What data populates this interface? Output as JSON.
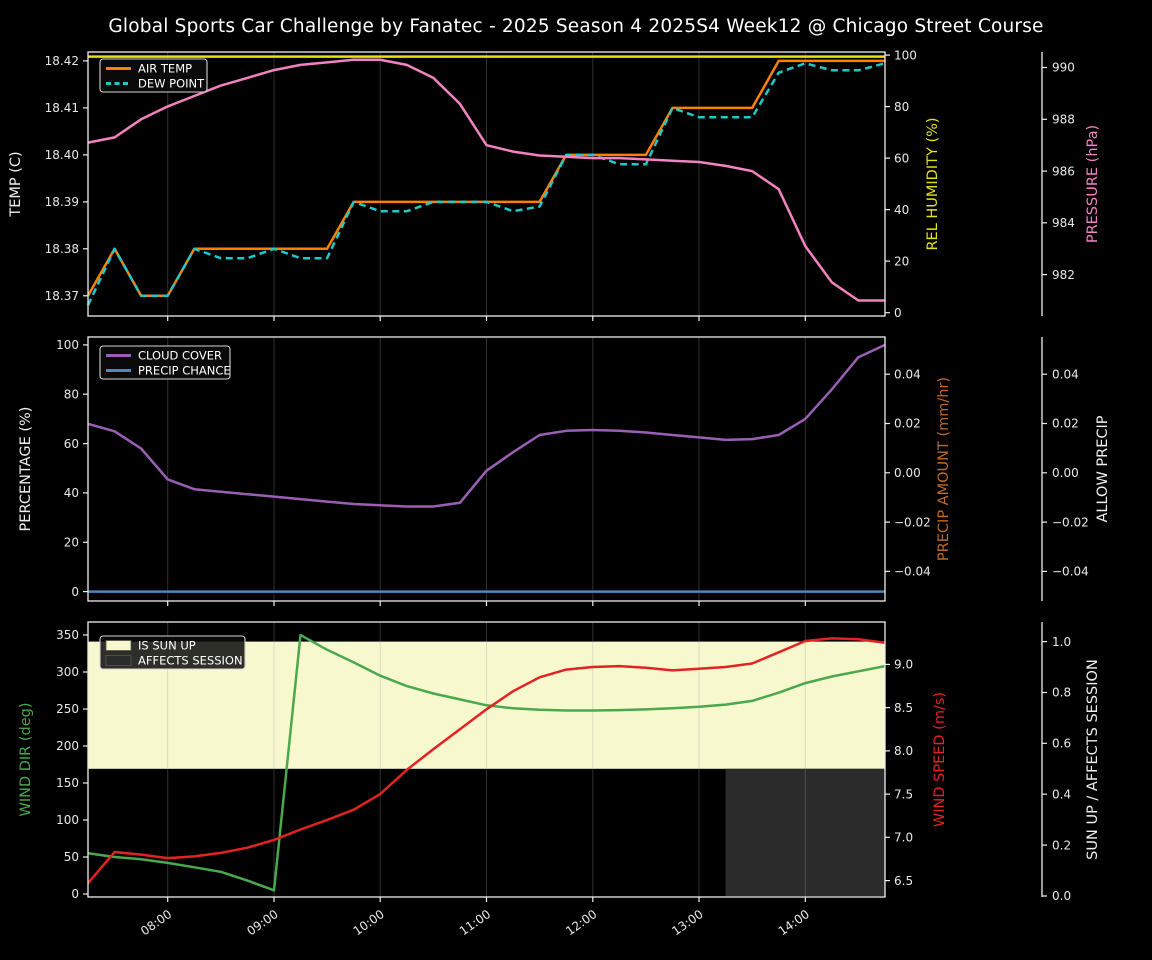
{
  "title": "Global Sports Car Challenge by Fanatec - 2025 Season 4 2025S4 Week12 @ Chicago Street Course",
  "colors": {
    "background": "#000000",
    "foreground": "#efefef",
    "tick_text": "#e8e8e8",
    "grid": "#9e9e9e",
    "air_temp": "#ff8000",
    "dew_point": "#1fc9c9",
    "humidity": "#e3e312",
    "pressure": "#f282c0",
    "cloud_cover": "#9a5fb5",
    "precip_chance": "#4d87bb",
    "precip_amount": "#c06a28",
    "wind_dir": "#4aa84e",
    "wind_speed": "#e32222",
    "sun_up_fill": "#f8f8ce",
    "affects_fill": "#2b2b2b",
    "legend_bg": "rgba(12,12,12,0.85)",
    "legend_border": "#d4d4d4"
  },
  "x_axis": {
    "start": "07:15",
    "end": "14:45",
    "step_minutes": 15,
    "tick_labels": [
      "08:00",
      "09:00",
      "10:00",
      "11:00",
      "12:00",
      "13:00",
      "14:00"
    ],
    "times": [
      "07:15",
      "07:30",
      "07:45",
      "08:00",
      "08:15",
      "08:30",
      "08:45",
      "09:00",
      "09:15",
      "09:30",
      "09:45",
      "10:00",
      "10:15",
      "10:30",
      "10:45",
      "11:00",
      "11:15",
      "11:30",
      "11:45",
      "12:00",
      "12:15",
      "12:30",
      "12:45",
      "13:00",
      "13:15",
      "13:30",
      "13:45",
      "14:00",
      "14:15",
      "14:30",
      "14:45"
    ]
  },
  "chart_data": [
    {
      "name": "temperature-humidity-pressure",
      "type": "line",
      "legend": [
        {
          "label": "AIR TEMP",
          "swatch": "line",
          "color_key": "air_temp",
          "dash": false
        },
        {
          "label": "DEW POINT",
          "swatch": "line",
          "color_key": "dew_point",
          "dash": true
        }
      ],
      "axes": {
        "left": {
          "label": "TEMP (C)",
          "color_key": "foreground",
          "tick_values": [
            18.37,
            18.38,
            18.39,
            18.4,
            18.41,
            18.42
          ],
          "tick_labels": [
            "18.37",
            "18.38",
            "18.39",
            "18.40",
            "18.41",
            "18.42"
          ],
          "range": [
            18.3657,
            18.4219
          ]
        },
        "right_inner": {
          "label": "REL HUMIDITY (%)",
          "color_key": "humidity",
          "tick_values": [
            0,
            20,
            40,
            60,
            80,
            100
          ],
          "tick_labels": [
            "0",
            "20",
            "40",
            "60",
            "80",
            "100"
          ],
          "range": [
            -1.3,
            101.2
          ]
        },
        "right_outer": {
          "label": "PRESSURE (hPa)",
          "color_key": "pressure",
          "tick_values": [
            982,
            984,
            986,
            988,
            990
          ],
          "tick_labels": [
            "982",
            "984",
            "986",
            "988",
            "990"
          ],
          "range": [
            980.4,
            990.6
          ]
        }
      },
      "series": [
        {
          "name": "AIR TEMP",
          "axis": "left",
          "color_key": "air_temp",
          "dash": false,
          "values": [
            18.37,
            18.38,
            18.37,
            18.37,
            18.38,
            18.38,
            18.38,
            18.38,
            18.38,
            18.38,
            18.39,
            18.39,
            18.39,
            18.39,
            18.39,
            18.39,
            18.39,
            18.39,
            18.4,
            18.4,
            18.4,
            18.4,
            18.41,
            18.41,
            18.41,
            18.41,
            18.42,
            18.42,
            18.42,
            18.42,
            18.42
          ]
        },
        {
          "name": "DEW POINT",
          "axis": "left",
          "color_key": "dew_point",
          "dash": true,
          "values": [
            18.368,
            18.38,
            18.37,
            18.37,
            18.38,
            18.378,
            18.378,
            18.38,
            18.378,
            18.378,
            18.39,
            18.388,
            18.388,
            18.39,
            18.39,
            18.39,
            18.388,
            18.389,
            18.4,
            18.4,
            18.398,
            18.398,
            18.41,
            18.408,
            18.408,
            18.408,
            18.4175,
            18.4195,
            18.418,
            18.418,
            18.4195
          ]
        },
        {
          "name": "REL HUMIDITY",
          "axis": "right_inner",
          "color_key": "humidity",
          "dash": false,
          "values": [
            99.4,
            99.4,
            99.4,
            99.4,
            99.4,
            99.4,
            99.4,
            99.4,
            99.4,
            99.4,
            99.4,
            99.4,
            99.4,
            99.4,
            99.4,
            99.4,
            99.4,
            99.4,
            99.4,
            99.4,
            99.4,
            99.4,
            99.4,
            99.4,
            99.4,
            99.4,
            99.4,
            99.4,
            99.4,
            99.4,
            99.4
          ]
        },
        {
          "name": "PRESSURE",
          "axis": "right_outer",
          "color_key": "pressure",
          "dash": false,
          "values": [
            987.1,
            987.3,
            988.0,
            988.5,
            988.9,
            989.3,
            989.6,
            989.9,
            990.1,
            990.2,
            990.3,
            990.3,
            990.1,
            989.6,
            988.6,
            987.0,
            986.75,
            986.6,
            986.55,
            986.5,
            986.5,
            986.45,
            986.4,
            986.35,
            986.2,
            986.0,
            985.3,
            983.1,
            981.7,
            981.0,
            981.0
          ]
        }
      ]
    },
    {
      "name": "cloud-precip",
      "type": "line",
      "legend": [
        {
          "label": "CLOUD COVER",
          "swatch": "line",
          "color_key": "cloud_cover",
          "dash": false
        },
        {
          "label": "PRECIP CHANCE",
          "swatch": "line",
          "color_key": "precip_chance",
          "dash": false
        }
      ],
      "axes": {
        "left": {
          "label": "PERCENTAGE (%)",
          "color_key": "foreground",
          "tick_values": [
            0,
            20,
            40,
            60,
            80,
            100
          ],
          "tick_labels": [
            "0",
            "20",
            "40",
            "60",
            "80",
            "100"
          ],
          "range": [
            -3.8,
            103.2
          ]
        },
        "right_inner": {
          "label": "PRECIP AMOUNT (mm/hr)",
          "color_key": "precip_amount",
          "tick_values": [
            0.04,
            0.02,
            0,
            -0.02,
            -0.04
          ],
          "tick_labels": [
            "0.04",
            "0.02",
            "0.00",
            "−0.02",
            "−0.04"
          ],
          "range": [
            -0.052,
            0.0551
          ]
        },
        "right_outer": {
          "label": "ALLOW PRECIP",
          "color_key": "foreground",
          "tick_values": [
            0.04,
            0.02,
            0,
            -0.02,
            -0.04
          ],
          "tick_labels": [
            "0.04",
            "0.02",
            "0.00",
            "−0.02",
            "−0.04"
          ],
          "range": [
            -0.052,
            0.0551
          ]
        }
      },
      "series": [
        {
          "name": "CLOUD COVER",
          "axis": "left",
          "color_key": "cloud_cover",
          "dash": false,
          "values": [
            68,
            65,
            58,
            45.5,
            41.5,
            40.5,
            39.5,
            38.5,
            37.5,
            36.5,
            35.5,
            35,
            34.5,
            34.5,
            36,
            49,
            56.5,
            63.5,
            65.2,
            65.5,
            65.2,
            64.5,
            63.5,
            62.5,
            61.5,
            61.8,
            63.5,
            70,
            82,
            95,
            100
          ]
        },
        {
          "name": "PRECIP CHANCE",
          "axis": "left",
          "color_key": "precip_chance",
          "dash": false,
          "values": [
            0,
            0,
            0,
            0,
            0,
            0,
            0,
            0,
            0,
            0,
            0,
            0,
            0,
            0,
            0,
            0,
            0,
            0,
            0,
            0,
            0,
            0,
            0,
            0,
            0,
            0,
            0,
            0,
            0,
            0,
            0
          ]
        }
      ]
    },
    {
      "name": "wind-sun",
      "type": "line",
      "legend": [
        {
          "label": "IS SUN UP",
          "swatch": "patch",
          "color_key": "sun_up_fill",
          "dash": false
        },
        {
          "label": "AFFECTS SESSION",
          "swatch": "patch",
          "color_key": "affects_fill",
          "dash": false
        }
      ],
      "axes": {
        "left": {
          "label": "WIND DIR (deg)",
          "color_key": "wind_dir",
          "tick_values": [
            0,
            50,
            100,
            150,
            200,
            250,
            300,
            350
          ],
          "tick_labels": [
            "0",
            "50",
            "100",
            "150",
            "200",
            "250",
            "300",
            "350"
          ],
          "range": [
            -4.1,
            367.6
          ]
        },
        "right_inner": {
          "label": "WIND SPEED (m/s)",
          "color_key": "wind_speed",
          "tick_values": [
            6.5,
            7.0,
            7.5,
            8.0,
            8.5,
            9.0
          ],
          "tick_labels": [
            "6.5",
            "7.0",
            "7.5",
            "8.0",
            "8.5",
            "9.0"
          ],
          "range": [
            6.31,
            9.49
          ]
        },
        "right_outer": {
          "label": "SUN UP / AFFECTS SESSION",
          "color_key": "foreground",
          "tick_values": [
            0,
            0.2,
            0.4,
            0.6,
            0.8,
            1.0
          ],
          "tick_labels": [
            "0.0",
            "0.2",
            "0.4",
            "0.6",
            "0.8",
            "1.0"
          ],
          "range": [
            -0.004,
            1.077
          ]
        }
      },
      "bands": [
        {
          "name": "IS SUN UP",
          "axis": "right_outer",
          "x_from": "07:15",
          "x_to": "14:45",
          "y_from": 0.5,
          "y_to": 1.0,
          "color_key": "sun_up_fill"
        },
        {
          "name": "AFFECTS SESSION",
          "axis": "right_outer",
          "x_from": "13:15",
          "x_to": "14:45",
          "y_from": 0.0,
          "y_to": 0.5,
          "color_key": "affects_fill"
        }
      ],
      "series": [
        {
          "name": "WIND DIR",
          "axis": "left",
          "color_key": "wind_dir",
          "dash": false,
          "values": [
            55,
            50,
            47,
            42,
            36,
            30,
            18,
            5,
            350,
            330,
            313,
            295,
            281,
            271,
            263,
            255,
            251,
            249,
            248,
            248,
            248.5,
            249.5,
            251,
            253,
            256,
            261,
            272,
            285,
            294,
            301,
            308
          ]
        },
        {
          "name": "WIND SPEED",
          "axis": "right_inner",
          "color_key": "wind_speed",
          "dash": false,
          "values": [
            6.47,
            6.83,
            6.8,
            6.76,
            6.78,
            6.82,
            6.88,
            6.97,
            7.09,
            7.2,
            7.32,
            7.5,
            7.78,
            8.02,
            8.25,
            8.48,
            8.69,
            8.85,
            8.94,
            8.97,
            8.98,
            8.96,
            8.93,
            8.95,
            8.97,
            9.01,
            9.14,
            9.27,
            9.3,
            9.29,
            9.25
          ]
        }
      ]
    }
  ]
}
